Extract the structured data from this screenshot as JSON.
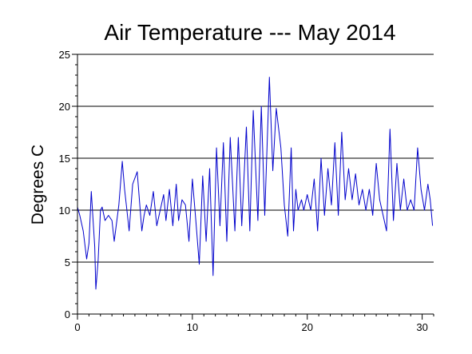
{
  "chart_data": {
    "type": "line",
    "title": "Air Temperature --- May 2014",
    "xlabel": "",
    "ylabel": "Degrees C",
    "xlim": [
      0,
      31
    ],
    "ylim": [
      0,
      25
    ],
    "x_ticks": [
      0,
      10,
      20,
      30
    ],
    "x_tick_labels": [
      "0",
      "10",
      "20",
      "30"
    ],
    "y_ticks": [
      0,
      5,
      10,
      15,
      20,
      25
    ],
    "y_tick_labels": [
      "0",
      "5",
      "10",
      "15",
      "20",
      "25"
    ],
    "grid": "horizontal",
    "line_color": "#0000cc",
    "series": [
      {
        "x": [
          0.0,
          0.2,
          0.5,
          0.8,
          1.0,
          1.2,
          1.5,
          1.6,
          1.8,
          2.0,
          2.15,
          2.4,
          2.7,
          3.0,
          3.2,
          3.6,
          3.9,
          4.1,
          4.3,
          4.5,
          4.8,
          5.2,
          5.6,
          5.8,
          6.0,
          6.3,
          6.6,
          6.9,
          7.2,
          7.5,
          7.7,
          8.0,
          8.3,
          8.6,
          8.8,
          9.1,
          9.4,
          9.7,
          10.0,
          10.3,
          10.6,
          10.9,
          11.2,
          11.5,
          11.8,
          12.1,
          12.4,
          12.7,
          13.0,
          13.3,
          13.7,
          14.0,
          14.3,
          14.7,
          15.0,
          15.3,
          15.7,
          16.0,
          16.3,
          16.7,
          17.0,
          17.3,
          17.7,
          18.0,
          18.3,
          18.6,
          18.8,
          19.0,
          19.2,
          19.5,
          19.7,
          20.0,
          20.3,
          20.6,
          20.9,
          21.2,
          21.5,
          21.8,
          22.1,
          22.4,
          22.7,
          23.0,
          23.3,
          23.6,
          23.9,
          24.2,
          24.5,
          24.8,
          25.1,
          25.4,
          25.7,
          26.0,
          26.3,
          26.6,
          26.9,
          27.2,
          27.5,
          27.8,
          28.1,
          28.4,
          28.7,
          29.0,
          29.3,
          29.6,
          29.9,
          30.2,
          30.5,
          30.7,
          30.9
        ],
        "y": [
          10.3,
          9.5,
          8.0,
          5.3,
          6.8,
          11.8,
          6.5,
          2.4,
          5.2,
          10.0,
          10.3,
          9.0,
          9.5,
          9.0,
          7.0,
          10.5,
          14.7,
          12.0,
          10.0,
          8.0,
          12.5,
          13.7,
          8.0,
          9.5,
          10.5,
          9.5,
          11.8,
          8.5,
          10.0,
          11.5,
          9.0,
          12.0,
          8.5,
          12.5,
          9.0,
          11.0,
          10.5,
          7.0,
          13.0,
          9.0,
          4.8,
          13.3,
          7.0,
          14.0,
          3.7,
          16.0,
          8.5,
          16.5,
          7.0,
          17.0,
          8.0,
          17.0,
          8.5,
          18.0,
          8.0,
          19.6,
          9.0,
          20.0,
          9.5,
          22.8,
          13.8,
          19.8,
          16.0,
          10.5,
          7.5,
          16.0,
          8.0,
          12.0,
          10.0,
          11.0,
          10.0,
          11.5,
          10.0,
          13.0,
          8.0,
          15.0,
          9.5,
          14.0,
          10.5,
          16.5,
          9.5,
          17.5,
          11.0,
          14.0,
          11.0,
          13.5,
          10.5,
          12.0,
          10.0,
          12.0,
          9.5,
          14.5,
          11.0,
          9.5,
          8.0,
          17.8,
          9.0,
          14.5,
          10.0,
          13.0,
          10.0,
          11.0,
          10.0,
          16.0,
          12.0,
          10.0,
          12.5,
          11.0,
          8.5
        ]
      }
    ]
  }
}
